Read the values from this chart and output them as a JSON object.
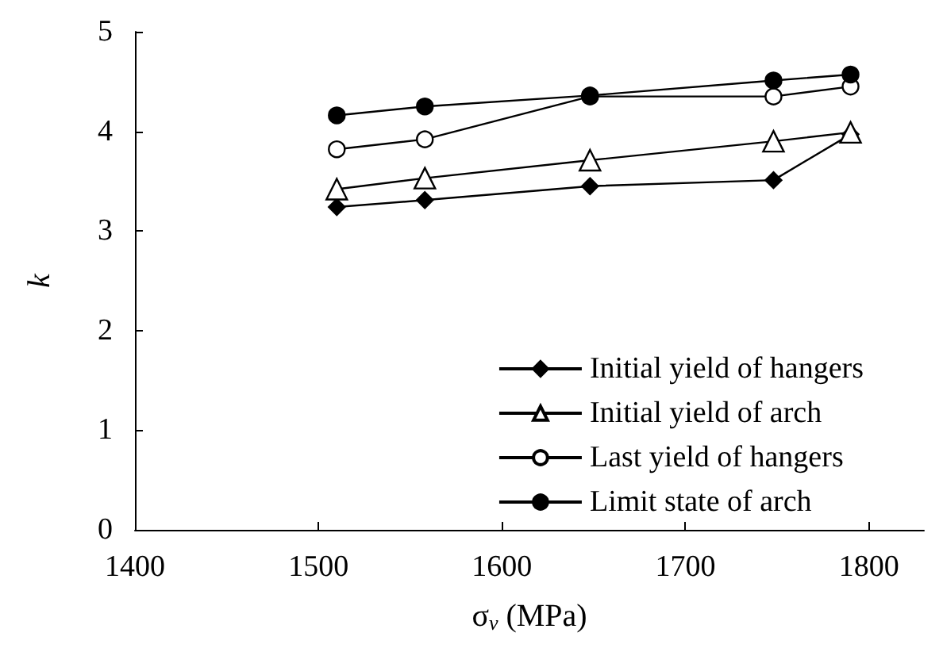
{
  "chart_data": {
    "type": "line",
    "xlabel": "σ$_{v}$ (MPa)",
    "ylabel": "k",
    "xlim": [
      1400,
      1830
    ],
    "xticks": [
      1400,
      1500,
      1600,
      1700,
      1800
    ],
    "ylim": [
      0,
      5
    ],
    "yticks": [
      0,
      1,
      2,
      3,
      4,
      5
    ],
    "x": [
      1510,
      1558,
      1648,
      1748,
      1790
    ],
    "series": [
      {
        "name": "Initial yield of hangers",
        "color": "#000000",
        "marker": "diamond",
        "values": [
          3.24,
          3.31,
          3.45,
          3.51,
          3.97
        ]
      },
      {
        "name": "Initial yield of arch",
        "color": "#000000",
        "marker": "triangle",
        "values": [
          3.42,
          3.53,
          3.71,
          3.9,
          3.99
        ]
      },
      {
        "name": "Last yield of hangers",
        "color": "#000000",
        "marker": "circle",
        "values": [
          3.82,
          3.92,
          4.35,
          4.35,
          4.45
        ]
      },
      {
        "name": "Limit state of arch",
        "color": "#000000",
        "marker": "circle",
        "values": [
          4.16,
          4.25,
          4.36,
          4.51,
          4.57
        ]
      }
    ],
    "legend": "bottom right",
    "grid": false,
    "line_style": "solid"
  }
}
